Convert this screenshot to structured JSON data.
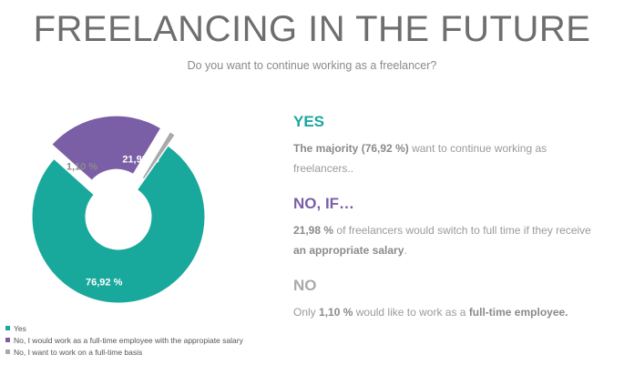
{
  "header": {
    "title": "FREELANCING IN THE FUTURE",
    "subtitle": "Do you want to continue working as a freelancer?"
  },
  "colors": {
    "yes": "#19a89c",
    "no_if": "#7b5fa6",
    "no": "#a9a9a9",
    "title": "#6e6e6e"
  },
  "chart_data": {
    "type": "pie",
    "title": "",
    "slices": [
      {
        "label": "Yes",
        "value": 76.92,
        "display": "76,92 %",
        "color": "#19a89c"
      },
      {
        "label": "No, I would work as a full-time employee with the appropiate salary",
        "value": 21.98,
        "display": "21,98 %",
        "color": "#7b5fa6"
      },
      {
        "label": "No, I want to work on a full-time basis",
        "value": 1.1,
        "display": "1,10 %",
        "color": "#a9a9a9"
      }
    ],
    "legend_position": "bottom-left"
  },
  "sections": {
    "yes": {
      "heading": "YES",
      "text_1": "The majority",
      "text_pct": "(76,92 %)",
      "text_2": "want to continue working as freelancers.."
    },
    "no_if": {
      "heading": "NO, IF…",
      "text_pct": "21,98 %",
      "text_1": "of freelancers would switch to full time if they receive",
      "text_bold": "an appropriate salary",
      "text_end": "."
    },
    "no": {
      "heading": "NO",
      "text_1": "Only",
      "text_pct": "1,10 %",
      "text_2": "would like to work as a",
      "text_bold": "full-time employee."
    }
  }
}
